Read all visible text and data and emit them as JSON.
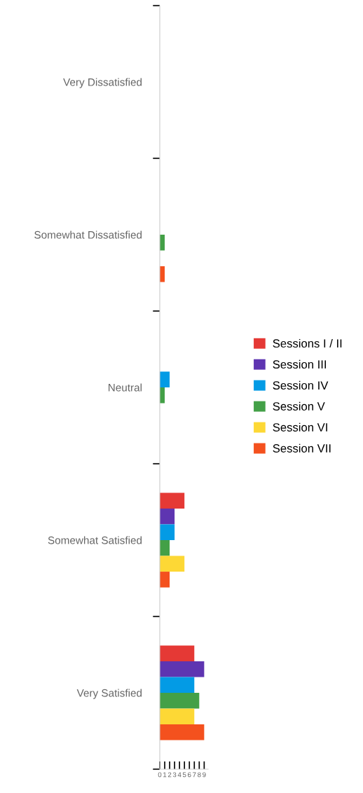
{
  "chart_data": {
    "type": "bar",
    "orientation": "horizontal",
    "categories": [
      "Very Dissatisfied",
      "Somewhat Dissatisfied",
      "Neutral",
      "Somewhat Satisfied",
      "Very Satisfied"
    ],
    "series": [
      {
        "name": "Sessions I / II",
        "color": "#e53935",
        "values": [
          0,
          0,
          0,
          5,
          7
        ]
      },
      {
        "name": "Session III",
        "color": "#5e35b1",
        "values": [
          0,
          0,
          0,
          3,
          9
        ]
      },
      {
        "name": "Session IV",
        "color": "#039be5",
        "values": [
          0,
          0,
          2,
          3,
          7
        ]
      },
      {
        "name": "Session V",
        "color": "#43a047",
        "values": [
          0,
          1,
          1,
          2,
          8
        ]
      },
      {
        "name": "Session VI",
        "color": "#fdd835",
        "values": [
          0,
          0,
          0,
          5,
          7
        ]
      },
      {
        "name": "Session VII",
        "color": "#f4511e",
        "values": [
          0,
          1,
          0,
          2,
          9
        ]
      }
    ],
    "xlim": [
      0,
      9.8
    ],
    "xticks": [
      0,
      1,
      2,
      3,
      4,
      5,
      6,
      7,
      8,
      9
    ],
    "grid": false,
    "legend": "right"
  }
}
